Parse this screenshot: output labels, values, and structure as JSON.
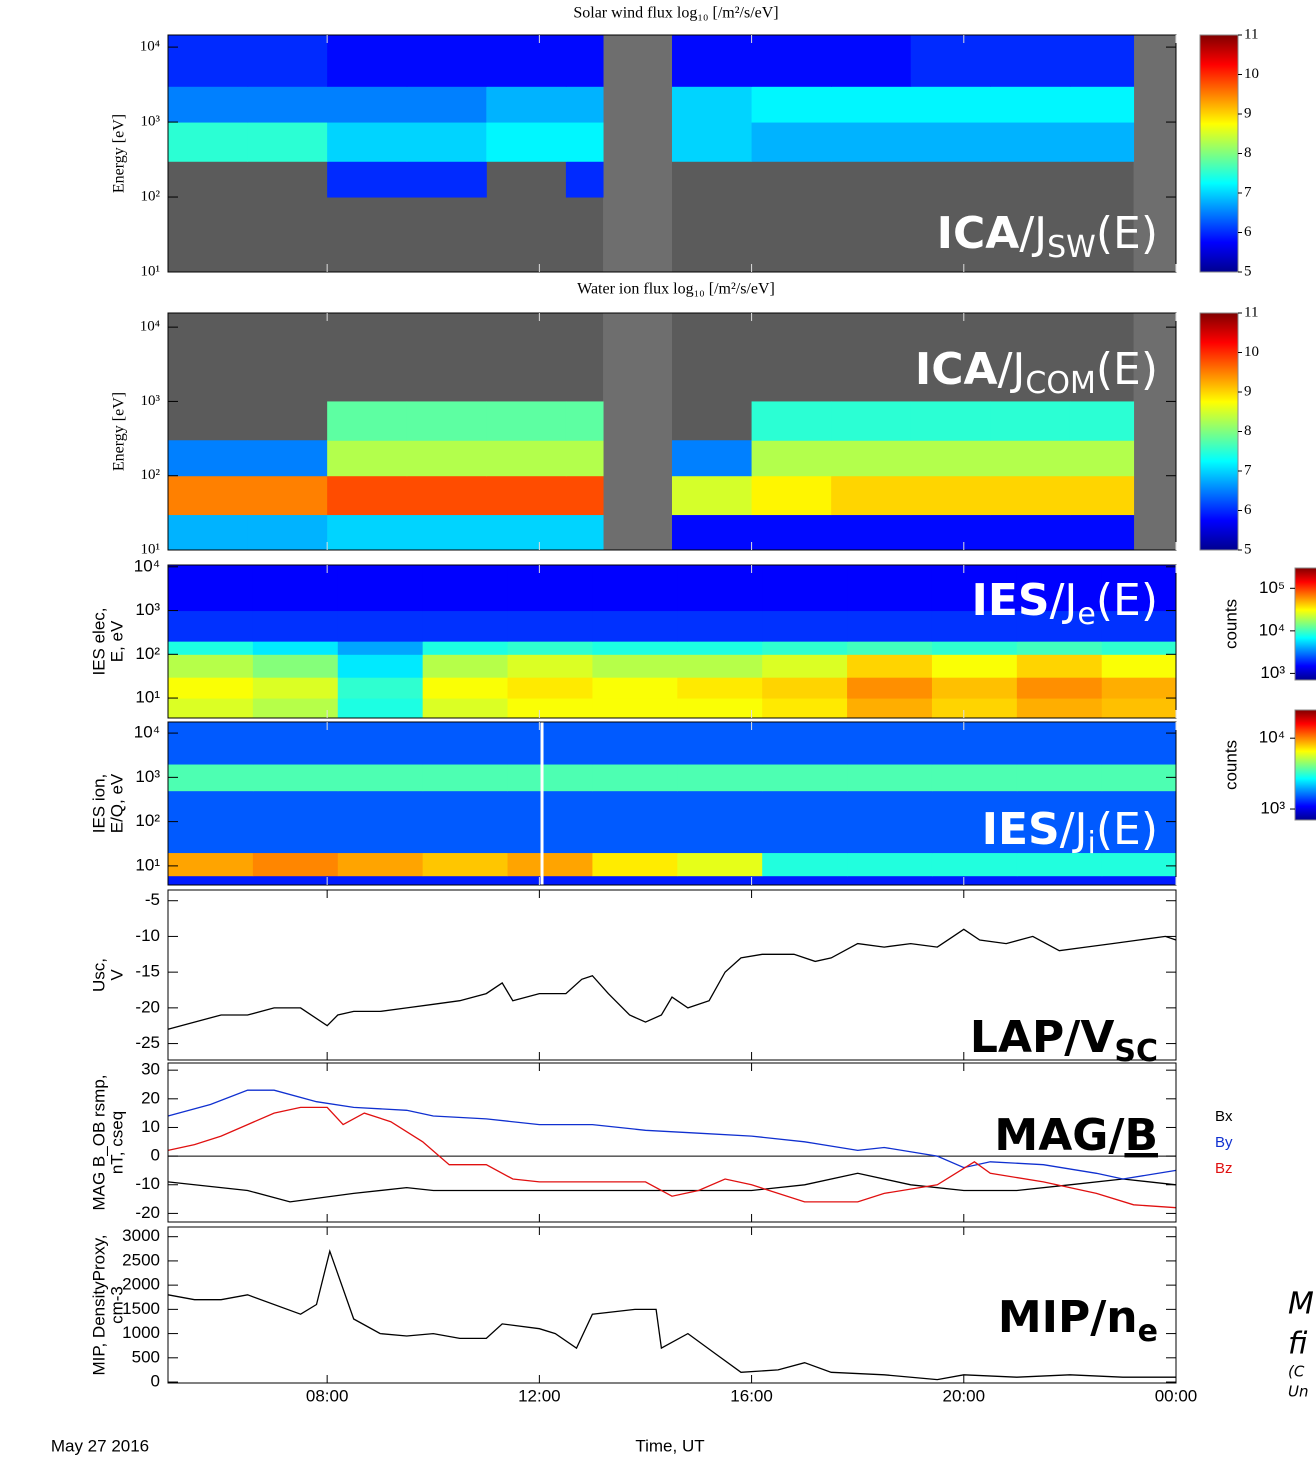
{
  "time_axis": {
    "xlim": [
      5,
      24
    ],
    "xticks": [
      {
        "value": 8,
        "label": "08:00"
      },
      {
        "value": 12,
        "label": "12:00"
      },
      {
        "value": 16,
        "label": "16:00"
      },
      {
        "value": 20,
        "label": "20:00"
      },
      {
        "value": 24,
        "label": "00:00"
      }
    ],
    "label": "Time, UT",
    "date": "May 27 2016"
  },
  "side_note": [
    "M",
    "fi",
    "(C",
    "Un"
  ],
  "chart_data": [
    {
      "type": "heatmap",
      "title": "Solar wind flux log₁₀ [/m²/s/eV]",
      "ylabel": [
        "Energy [eV]"
      ],
      "log_y": true,
      "ylim": [
        10,
        14500
      ],
      "yticks": [
        {
          "value": 10,
          "label": "10¹"
        },
        {
          "value": 100,
          "label": "10²"
        },
        {
          "value": 1000,
          "label": "10³"
        },
        {
          "value": 10000,
          "label": "10⁴"
        }
      ],
      "background": "#5b5b5b",
      "gap_color": "#6e6e6e",
      "gaps": [
        [
          13.2,
          14.5
        ],
        [
          23.2,
          24
        ]
      ],
      "x_bins": [
        5,
        6.5,
        8,
        9.5,
        11,
        12.5,
        13.2,
        14.5,
        16,
        17.5,
        19,
        20.5,
        22,
        23.2,
        24
      ],
      "y_bins": [
        10,
        30,
        100,
        300,
        1000,
        3000,
        14500
      ],
      "z": [
        [
          null,
          null,
          null,
          null,
          null,
          null,
          null,
          null,
          null,
          null,
          null,
          null,
          null,
          null
        ],
        [
          null,
          null,
          null,
          null,
          null,
          null,
          null,
          null,
          null,
          null,
          null,
          null,
          null,
          null
        ],
        [
          null,
          null,
          6,
          6,
          null,
          6,
          null,
          null,
          null,
          null,
          null,
          null,
          null,
          null
        ],
        [
          7.5,
          7.5,
          7,
          7,
          7.2,
          7.2,
          null,
          7,
          6.8,
          6.8,
          6.8,
          6.8,
          6.8,
          null
        ],
        [
          6.5,
          6.5,
          6.5,
          6.5,
          6.8,
          6.8,
          null,
          7,
          7.2,
          7.2,
          7.2,
          7.2,
          7.2,
          null
        ],
        [
          6,
          6,
          5.8,
          5.8,
          5.8,
          5.8,
          null,
          5.8,
          5.8,
          5.8,
          6,
          6,
          6,
          null
        ]
      ],
      "log_z": false,
      "zlim": [
        5,
        11
      ],
      "zticks": [
        5,
        6,
        7,
        8,
        9,
        10,
        11
      ],
      "annotation": {
        "color": "#ffffff",
        "parts": [
          {
            "text": "ICA",
            "bold": true
          },
          {
            "text": "/J"
          },
          {
            "text": "SW",
            "sub": true
          },
          {
            "text": "(E)"
          }
        ]
      }
    },
    {
      "type": "heatmap",
      "title": "Water ion flux log₁₀ [/m²/s/eV]",
      "ylabel": [
        "Energy [eV]"
      ],
      "log_y": true,
      "ylim": [
        10,
        15500
      ],
      "yticks": [
        {
          "value": 10,
          "label": "10¹"
        },
        {
          "value": 100,
          "label": "10²"
        },
        {
          "value": 1000,
          "label": "10³"
        },
        {
          "value": 10000,
          "label": "10⁴"
        }
      ],
      "background": "#5b5b5b",
      "gap_color": "#6e6e6e",
      "gaps": [
        [
          13.2,
          14.5
        ],
        [
          23.2,
          24
        ]
      ],
      "x_bins": [
        5,
        6.5,
        8,
        9.5,
        11,
        12.5,
        13.2,
        14.5,
        16,
        17.5,
        19,
        20.5,
        22,
        23.2,
        24
      ],
      "y_bins": [
        10,
        30,
        100,
        300,
        1000,
        3000,
        15500
      ],
      "z": [
        [
          6.8,
          6.8,
          7,
          7,
          7,
          7,
          null,
          5.8,
          5.8,
          5.8,
          5.8,
          5.8,
          5.8,
          null
        ],
        [
          9.5,
          9.5,
          9.8,
          9.8,
          9.8,
          9.8,
          null,
          8.5,
          8.8,
          9,
          9,
          9,
          9,
          null
        ],
        [
          6.5,
          6.5,
          8.3,
          8.3,
          8.3,
          8.3,
          null,
          6.5,
          8.3,
          8.3,
          8.3,
          8.3,
          8.3,
          null
        ],
        [
          null,
          null,
          7.8,
          7.8,
          7.8,
          7.8,
          null,
          null,
          7.5,
          7.5,
          7.5,
          7.5,
          7.5,
          null
        ],
        [
          null,
          null,
          null,
          null,
          null,
          null,
          null,
          null,
          null,
          null,
          null,
          null,
          null,
          null
        ],
        [
          null,
          null,
          null,
          null,
          null,
          null,
          null,
          null,
          null,
          null,
          null,
          null,
          null,
          null
        ]
      ],
      "log_z": false,
      "zlim": [
        5,
        11
      ],
      "zticks": [
        5,
        6,
        7,
        8,
        9,
        10,
        11
      ],
      "annotation": {
        "color": "#ffffff",
        "parts": [
          {
            "text": "ICA",
            "bold": true
          },
          {
            "text": "/J"
          },
          {
            "text": "COM",
            "sub": true
          },
          {
            "text": "(E)"
          }
        ]
      }
    },
    {
      "type": "heatmap",
      "ylabel": [
        "IES elec,",
        "E, eV"
      ],
      "log_y": true,
      "ylim": [
        3.5,
        11000
      ],
      "yticks": [
        {
          "value": 10,
          "label": "10¹"
        },
        {
          "value": 100,
          "label": "10²"
        },
        {
          "value": 1000,
          "label": "10³"
        },
        {
          "value": 10000,
          "label": "10⁴"
        }
      ],
      "background": "#1f3fd0",
      "x_bins": [
        5,
        6.6,
        8.2,
        9.8,
        11.4,
        13,
        14.6,
        16.2,
        17.8,
        19.4,
        21,
        22.6,
        24
      ],
      "y_bins": [
        3.5,
        10,
        30,
        100,
        200,
        1000,
        11000
      ],
      "z": [
        [
          25000,
          20000,
          8000,
          25000,
          30000,
          30000,
          30000,
          35000,
          50000,
          40000,
          50000,
          45000
        ],
        [
          30000,
          25000,
          9000,
          30000,
          35000,
          30000,
          35000,
          40000,
          60000,
          45000,
          60000,
          50000
        ],
        [
          20000,
          15000,
          6000,
          20000,
          25000,
          20000,
          20000,
          25000,
          40000,
          30000,
          40000,
          30000
        ],
        [
          8000,
          6000,
          4000,
          8000,
          9000,
          8000,
          8000,
          9000,
          10000,
          9000,
          10000,
          9000
        ],
        [
          2000,
          2000,
          2000,
          2000,
          2000,
          2000,
          2000,
          2000,
          2000,
          2000,
          2000,
          2000
        ],
        [
          1500,
          1500,
          1500,
          1500,
          1500,
          1500,
          1500,
          1500,
          1500,
          1500,
          1500,
          1500
        ]
      ],
      "log_z": true,
      "zlim": [
        700,
        300000
      ],
      "zticks": [
        {
          "value": 1000,
          "label": "10³"
        },
        {
          "value": 10000,
          "label": "10⁴"
        },
        {
          "value": 100000,
          "label": "10⁵"
        }
      ],
      "colorbar_label": "counts",
      "annotation": {
        "color": "#ffffff",
        "parts": [
          {
            "text": "IES",
            "bold": true
          },
          {
            "text": "/J"
          },
          {
            "text": "e",
            "sub": true
          },
          {
            "text": "(E)"
          }
        ]
      }
    },
    {
      "type": "heatmap",
      "ylabel": [
        "IES ion,",
        "E/Q, eV"
      ],
      "log_y": true,
      "ylim": [
        3.7,
        17800
      ],
      "yticks": [
        {
          "value": 10,
          "label": "10¹"
        },
        {
          "value": 100,
          "label": "10²"
        },
        {
          "value": 1000,
          "label": "10³"
        },
        {
          "value": 10000,
          "label": "10⁴"
        }
      ],
      "background": "#1f3fd0",
      "gap_at": 12.05,
      "x_bins": [
        5,
        6.6,
        8.2,
        9.8,
        11.4,
        13,
        14.6,
        16.2,
        17.8,
        19.4,
        21,
        22.6,
        24
      ],
      "y_bins": [
        3.7,
        6,
        20,
        500,
        2000,
        17800
      ],
      "z": [
        [
          1200,
          1200,
          1200,
          1200,
          1200,
          1200,
          1200,
          1200,
          1200,
          1200,
          1200,
          1200
        ],
        [
          9000,
          10000,
          9000,
          8000,
          9000,
          7000,
          6000,
          3000,
          3000,
          3000,
          3000,
          3000
        ],
        [
          1500,
          1500,
          1500,
          1500,
          1500,
          1500,
          1500,
          1500,
          1500,
          1500,
          1500,
          1500
        ],
        [
          3500,
          3500,
          3500,
          3500,
          3500,
          3500,
          3500,
          3500,
          3500,
          3500,
          3500,
          3500
        ],
        [
          1500,
          1500,
          1500,
          1500,
          1500,
          1500,
          1500,
          1500,
          1500,
          1500,
          1500,
          1500
        ]
      ],
      "log_z": true,
      "zlim": [
        700,
        25000
      ],
      "zticks": [
        {
          "value": 1000,
          "label": "10³"
        },
        {
          "value": 10000,
          "label": "10⁴"
        }
      ],
      "colorbar_label": "counts",
      "annotation": {
        "color": "#ffffff",
        "parts": [
          {
            "text": "IES",
            "bold": true
          },
          {
            "text": "/J"
          },
          {
            "text": "i",
            "sub": true
          },
          {
            "text": "(E)"
          }
        ]
      }
    },
    {
      "type": "line",
      "ylabel": [
        "Usc,",
        "V"
      ],
      "ylim": [
        -27.3,
        -3.5
      ],
      "yticks": [
        -5,
        -10,
        -15,
        -20,
        -25
      ],
      "series": [
        {
          "color": "#000000",
          "x": [
            5,
            5.5,
            6,
            6.5,
            7,
            7.5,
            8,
            8.2,
            8.5,
            9,
            9.5,
            10,
            10.5,
            11,
            11.3,
            11.5,
            12,
            12.5,
            12.8,
            13,
            13.3,
            13.7,
            14,
            14.3,
            14.5,
            14.8,
            15.2,
            15.5,
            15.8,
            16.2,
            16.8,
            17.2,
            17.5,
            18,
            18.5,
            19,
            19.5,
            19.8,
            20,
            20.3,
            20.8,
            21.3,
            21.8,
            22.3,
            22.8,
            23.3,
            23.8,
            24
          ],
          "values": [
            -23,
            -22,
            -21,
            -21,
            -20,
            -20,
            -22.5,
            -21,
            -20.5,
            -20.5,
            -20,
            -19.5,
            -19,
            -18,
            -16.5,
            -19,
            -18,
            -18,
            -16,
            -15.5,
            -18,
            -21,
            -22,
            -21,
            -18.5,
            -20,
            -19,
            -15,
            -13,
            -12.5,
            -12.5,
            -13.5,
            -13,
            -11,
            -11.5,
            -11,
            -11.5,
            -10,
            -9,
            -10.5,
            -11,
            -10,
            -12,
            -11.5,
            -11,
            -10.5,
            -10,
            -10.5
          ]
        }
      ],
      "annotation": {
        "color": "#000000",
        "parts": [
          {
            "text": "LAP/V",
            "bold": true
          },
          {
            "text": "SC",
            "bold": true,
            "sub": true
          }
        ]
      }
    },
    {
      "type": "line",
      "ylabel": [
        "MAG B_OB rsmp,",
        "nT, cseq"
      ],
      "ylim": [
        -23,
        32.5
      ],
      "yticks": [
        30,
        20,
        10,
        0,
        -10,
        -20
      ],
      "zero_line": true,
      "series": [
        {
          "name": "Bx",
          "color": "#000000",
          "x": [
            5,
            6.5,
            7.3,
            8.5,
            9.5,
            10,
            12,
            14,
            16,
            17,
            18,
            19,
            20,
            21,
            22,
            23,
            24
          ],
          "values": [
            -9,
            -12,
            -16,
            -13,
            -11,
            -12,
            -12,
            -12,
            -12,
            -10,
            -6,
            -10,
            -12,
            -12,
            -10,
            -8,
            -10
          ]
        },
        {
          "name": "By",
          "color": "#1030d0",
          "x": [
            5,
            5.8,
            6.5,
            7,
            7.8,
            8.5,
            9.5,
            10,
            11,
            12,
            13,
            14,
            15,
            16,
            17,
            18,
            18.5,
            19.5,
            20,
            20.5,
            21.5,
            22.5,
            23,
            24
          ],
          "values": [
            14,
            18,
            23,
            23,
            19,
            17,
            16,
            14,
            13,
            11,
            11,
            9,
            8,
            7,
            5,
            2,
            3,
            0,
            -4,
            -2,
            -3,
            -6,
            -8,
            -5
          ]
        },
        {
          "name": "Bz",
          "color": "#e01010",
          "x": [
            5,
            5.5,
            6,
            6.5,
            7,
            7.5,
            8,
            8.3,
            8.7,
            9.2,
            9.8,
            10.3,
            11,
            11.5,
            12,
            13,
            14,
            14.5,
            15,
            15.5,
            16,
            17,
            18,
            18.5,
            19.5,
            20.2,
            20.5,
            21.5,
            22.5,
            23.2,
            24
          ],
          "values": [
            2,
            4,
            7,
            11,
            15,
            17,
            17,
            11,
            15,
            12,
            5,
            -3,
            -3,
            -8,
            -9,
            -9,
            -9,
            -14,
            -12,
            -8,
            -10,
            -16,
            -16,
            -13,
            -10,
            -2,
            -6,
            -9,
            -13,
            -17,
            -18
          ]
        }
      ],
      "annotation": {
        "color": "#000000",
        "parts": [
          {
            "text": "MAG/",
            "bold": true
          },
          {
            "text": "B",
            "bold": true,
            "underline": true
          }
        ]
      }
    },
    {
      "type": "line",
      "ylabel": [
        "MIP, DensityProxy,",
        "cm-3"
      ],
      "ylim": [
        -20,
        3200
      ],
      "yticks": [
        3000,
        2500,
        2000,
        1500,
        1000,
        500,
        0
      ],
      "series": [
        {
          "color": "#000000",
          "x": [
            5,
            5.5,
            6,
            6.5,
            7.5,
            7.8,
            8.05,
            8.5,
            9,
            9.5,
            10,
            10.5,
            11,
            11.3,
            12,
            12.3,
            12.7,
            13,
            13.8,
            14.2,
            14.3,
            14.8,
            15.3,
            15.8,
            16.5,
            17,
            17.5,
            18.5,
            19.5,
            20,
            21,
            22,
            23,
            24
          ],
          "values": [
            1800,
            1700,
            1700,
            1800,
            1400,
            1600,
            2700,
            1300,
            1000,
            950,
            1000,
            900,
            900,
            1200,
            1100,
            1000,
            700,
            1400,
            1500,
            1500,
            700,
            1000,
            600,
            200,
            250,
            400,
            200,
            150,
            50,
            150,
            100,
            150,
            100,
            100
          ]
        }
      ],
      "annotation": {
        "color": "#000000",
        "parts": [
          {
            "text": "MIP/n",
            "bold": true
          },
          {
            "text": "e",
            "bold": true,
            "sub": true
          }
        ]
      }
    }
  ]
}
